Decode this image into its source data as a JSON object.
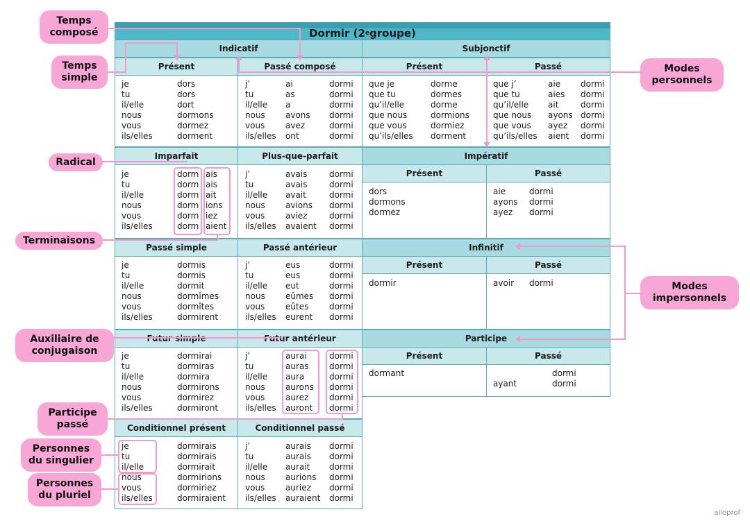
{
  "title": "Dormir (2e groupe)",
  "title_base": "Dormir (2",
  "title_sup": "e",
  "title_end": " groupe)",
  "modes": {
    "indicatif": "Indicatif",
    "subjonctif": "Subjonctif",
    "imperatif": "Impératif",
    "infinitif": "Infinitif",
    "participe": "Participe"
  },
  "tenses": {
    "present": {
      "label": "Présent",
      "pronouns": [
        "je",
        "tu",
        "il/elle",
        "nous",
        "vous",
        "ils/elles"
      ],
      "forms": [
        "dors",
        "dors",
        "dort",
        "dormons",
        "dormez",
        "dorment"
      ]
    },
    "passe_compose": {
      "label": "Passé composé",
      "pronouns": [
        "j’",
        "tu",
        "il/elle",
        "nous",
        "vous",
        "ils/elles"
      ],
      "aux": [
        "ai",
        "as",
        "a",
        "avons",
        "avez",
        "ont"
      ],
      "pp": [
        "dormi",
        "dormi",
        "dormi",
        "dormi",
        "dormi",
        "dormi"
      ]
    },
    "imparfait": {
      "label": "Imparfait",
      "pronouns": [
        "je",
        "tu",
        "il/elle",
        "nous",
        "vous",
        "ils/elles"
      ],
      "radical": [
        "dorm",
        "dorm",
        "dorm",
        "dorm",
        "dorm",
        "dorm"
      ],
      "endings": [
        "ais",
        "ais",
        "ait",
        "ions",
        "iez",
        "aient"
      ]
    },
    "plus_que_parfait": {
      "label": "Plus-que-parfait",
      "pronouns": [
        "j’",
        "tu",
        "il/elle",
        "nous",
        "vous",
        "ils/elles"
      ],
      "aux": [
        "avais",
        "avais",
        "avait",
        "avions",
        "aviez",
        "avaient"
      ],
      "pp": [
        "dormi",
        "dormi",
        "dormi",
        "dormi",
        "dormi",
        "dormi"
      ]
    },
    "passe_simple": {
      "label": "Passé simple",
      "pronouns": [
        "je",
        "tu",
        "il/elle",
        "nous",
        "vous",
        "ils/elles"
      ],
      "forms": [
        "dormis",
        "dormis",
        "dormit",
        "dormîmes",
        "dormîtes",
        "dormirent"
      ]
    },
    "passe_anterieur": {
      "label": "Passé antérieur",
      "pronouns": [
        "j’",
        "tu",
        "il/elle",
        "nous",
        "vous",
        "ils/elles"
      ],
      "aux": [
        "eus",
        "eus",
        "eut",
        "eûmes",
        "eûtes",
        "eurent"
      ],
      "pp": [
        "dormi",
        "dormi",
        "dormi",
        "dormi",
        "dormi",
        "dormi"
      ]
    },
    "futur_simple": {
      "label": "Futur simple",
      "pronouns": [
        "je",
        "tu",
        "il/elle",
        "nous",
        "vous",
        "ils/elles"
      ],
      "forms": [
        "dormirai",
        "dormiras",
        "dormira",
        "dormirons",
        "dormirez",
        "dormiront"
      ]
    },
    "futur_anterieur": {
      "label": "Futur antérieur",
      "pronouns": [
        "j’",
        "tu",
        "il/elle",
        "nous",
        "vous",
        "ils/elles"
      ],
      "aux": [
        "aurai",
        "auras",
        "aura",
        "aurons",
        "aurez",
        "auront"
      ],
      "pp": [
        "dormi",
        "dormi",
        "dormi",
        "dormi",
        "dormi",
        "dormi"
      ]
    },
    "cond_present": {
      "label": "Conditionnel présent",
      "pronouns": [
        "je",
        "tu",
        "il/elle",
        "nous",
        "vous",
        "ils/elles"
      ],
      "forms": [
        "dormirais",
        "dormirais",
        "dormirait",
        "dormirions",
        "dormiriez",
        "dormiraient"
      ]
    },
    "cond_passe": {
      "label": "Conditionnel passé",
      "pronouns": [
        "j’",
        "tu",
        "il/elle",
        "nous",
        "vous",
        "ils/elles"
      ],
      "aux": [
        "aurais",
        "aurais",
        "aurait",
        "aurions",
        "auriez",
        "auraient"
      ],
      "pp": [
        "dormi",
        "dormi",
        "dormi",
        "dormi",
        "dormi",
        "dormi"
      ]
    },
    "subj_present": {
      "label": "Présent",
      "pronouns": [
        "que je",
        "que tu",
        "qu’il/elle",
        "que nous",
        "que vous",
        "qu’ils/elles"
      ],
      "forms": [
        "dorme",
        "dormes",
        "dorme",
        "dormions",
        "dormiez",
        "dorment"
      ]
    },
    "subj_passe": {
      "label": "Passé",
      "pronouns": [
        "que j’",
        "que tu",
        "qu’il/elle",
        "que nous",
        "que vous",
        "qu’ils/elles"
      ],
      "aux": [
        "aie",
        "aies",
        "ait",
        "ayons",
        "ayez",
        "aient"
      ],
      "pp": [
        "dormi",
        "dormi",
        "dormi",
        "dormi",
        "dormi",
        "dormi"
      ]
    },
    "imp_present": {
      "label": "Présent",
      "forms": [
        "dors",
        "dormons",
        "dormez"
      ]
    },
    "imp_passe": {
      "label": "Passé",
      "aux": [
        "aie",
        "ayons",
        "ayez"
      ],
      "pp": [
        "dormi",
        "dormi",
        "dormi"
      ]
    },
    "inf_present": {
      "label": "Présent",
      "form": "dormir"
    },
    "inf_passe": {
      "label": "Passé",
      "aux": "avoir",
      "pp": "dormi"
    },
    "part_present": {
      "label": "Présent",
      "form": "dormant"
    },
    "part_passe": {
      "label": "Passé",
      "pp": "dormi",
      "aux": "ayant",
      "pp2": "dormi"
    }
  },
  "callouts": {
    "temps_compose": [
      "Temps",
      "composé"
    ],
    "temps_simple": [
      "Temps",
      "simple"
    ],
    "radical": [
      "Radical"
    ],
    "terminaisons": [
      "Terminaisons"
    ],
    "auxiliaire": [
      "Auxiliaire de",
      "conjugaison"
    ],
    "participe_passe": [
      "Participe",
      "passé"
    ],
    "personnes_singulier": [
      "Personnes",
      "du singulier"
    ],
    "personnes_pluriel": [
      "Personnes",
      "du pluriel"
    ],
    "modes_personnels": [
      "Modes",
      "personnels"
    ],
    "modes_impersonnels": [
      "Modes",
      "impersonnels"
    ]
  },
  "brand": "alloprof",
  "colors": {
    "accent": "#4fb8c8",
    "header": "#c9e8ec",
    "mode_header": "#a8dae1",
    "border": "#5aa9b4",
    "highlight": "#f298cf",
    "callout": "#f7a6d6"
  }
}
